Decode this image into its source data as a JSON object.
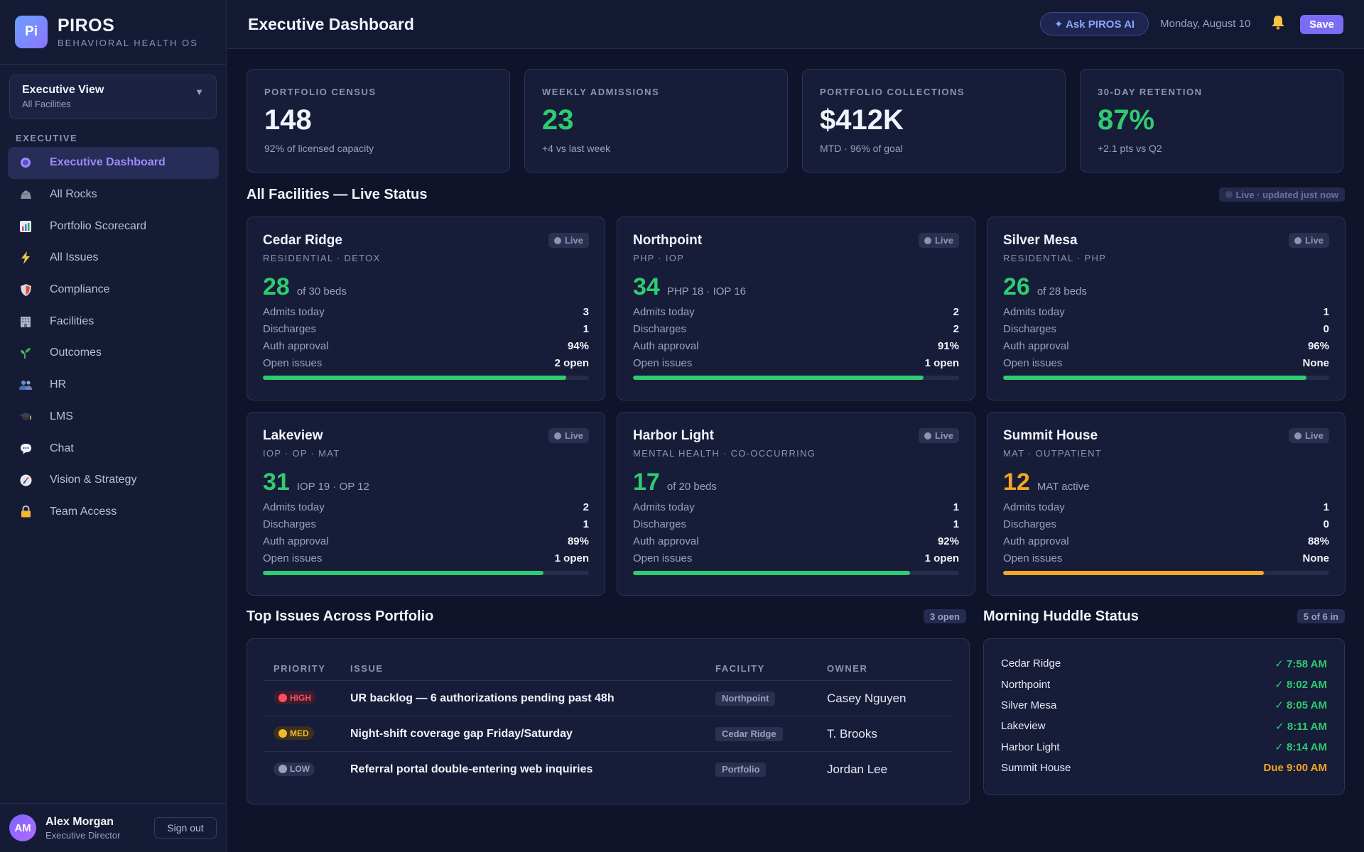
{
  "brand": {
    "logo": "Pi",
    "name": "PIROS",
    "subtitle": "BEHAVIORAL HEALTH OS"
  },
  "view_selector": {
    "title": "Executive View",
    "subtitle": "All Facilities",
    "caret": "▼"
  },
  "sidebar": {
    "section_label": "EXECUTIVE",
    "items": [
      {
        "label": "Executive Dashboard",
        "icon": "dot-icon",
        "active": true
      },
      {
        "label": "All Rocks",
        "icon": "rock-icon"
      },
      {
        "label": "Portfolio Scorecard",
        "icon": "chart-icon"
      },
      {
        "label": "All Issues",
        "icon": "lightning-icon"
      },
      {
        "label": "Compliance",
        "icon": "shield-icon"
      },
      {
        "label": "Facilities",
        "icon": "building-icon"
      },
      {
        "label": "Outcomes",
        "icon": "seedling-icon"
      },
      {
        "label": "HR",
        "icon": "people-icon"
      },
      {
        "label": "LMS",
        "icon": "graduation-cap-icon"
      },
      {
        "label": "Chat",
        "icon": "speech-bubble-icon"
      },
      {
        "label": "Vision & Strategy",
        "icon": "compass-icon"
      },
      {
        "label": "Team Access",
        "icon": "lock-icon"
      }
    ]
  },
  "user": {
    "initials": "AM",
    "name": "Alex Morgan",
    "role": "Executive Director",
    "signout_label": "Sign out"
  },
  "header": {
    "title": "Executive Dashboard",
    "ask_label": "✦ Ask PIROS AI",
    "date": "Monday, August 10",
    "save_label": "Save"
  },
  "kpis": [
    {
      "label": "PORTFOLIO CENSUS",
      "value": "148",
      "sub": "92% of licensed capacity",
      "color": "#f2f4fb"
    },
    {
      "label": "WEEKLY ADMISSIONS",
      "value": "23",
      "sub": "+4 vs last week",
      "color": "#2ecc71"
    },
    {
      "label": "PORTFOLIO COLLECTIONS",
      "value": "$412K",
      "sub": "MTD · 96% of goal",
      "color": "#f2f4fb"
    },
    {
      "label": "30-DAY RETENTION",
      "value": "87%",
      "sub": "+2.1 pts vs Q2",
      "color": "#2ecc71"
    }
  ],
  "facilities_section": {
    "title": "All Facilities — Live Status",
    "live_note": "Live · updated just now"
  },
  "row_labels": {
    "admits": "Admits today",
    "discharges": "Discharges",
    "auth": "Auth approval",
    "issues": "Open issues"
  },
  "facilities": [
    {
      "name": "Cedar Ridge",
      "type": "RESIDENTIAL · DETOX",
      "live": "Live",
      "census": "28",
      "census_sub": "of 30 beds",
      "admits": "3",
      "discharges": "1",
      "auth": "94%",
      "issues": "2 open",
      "progress": 0.93,
      "color": "#2ecc71"
    },
    {
      "name": "Northpoint",
      "type": "PHP · IOP",
      "live": "Live",
      "census": "34",
      "census_sub": "PHP 18 · IOP 16",
      "admits": "2",
      "discharges": "2",
      "auth": "91%",
      "issues": "1 open",
      "progress": 0.89,
      "color": "#2ecc71"
    },
    {
      "name": "Silver Mesa",
      "type": "RESIDENTIAL · PHP",
      "live": "Live",
      "census": "26",
      "census_sub": "of 28 beds",
      "admits": "1",
      "discharges": "0",
      "auth": "96%",
      "issues": "None",
      "progress": 0.93,
      "color": "#2ecc71"
    },
    {
      "name": "Lakeview",
      "type": "IOP · OP · MAT",
      "live": "Live",
      "census": "31",
      "census_sub": "IOP 19 · OP 12",
      "admits": "2",
      "discharges": "1",
      "auth": "89%",
      "issues": "1 open",
      "progress": 0.86,
      "color": "#2ecc71"
    },
    {
      "name": "Harbor Light",
      "type": "MENTAL HEALTH · CO-OCCURRING",
      "live": "Live",
      "census": "17",
      "census_sub": "of 20 beds",
      "admits": "1",
      "discharges": "1",
      "auth": "92%",
      "issues": "1 open",
      "progress": 0.85,
      "color": "#2ecc71"
    },
    {
      "name": "Summit House",
      "type": "MAT · OUTPATIENT",
      "live": "Live",
      "census": "12",
      "census_sub": "MAT active",
      "admits": "1",
      "discharges": "0",
      "auth": "88%",
      "issues": "None",
      "progress": 0.8,
      "color": "#f5a623"
    }
  ],
  "issues_section": {
    "title": "Top Issues Across Portfolio",
    "count": "3 open",
    "headers": [
      "PRIORITY",
      "ISSUE",
      "FACILITY",
      "OWNER"
    ],
    "rows": [
      {
        "priority": "HIGH",
        "priority_color": "#ff4d5e",
        "priority_bg": "#3a1d2e",
        "issue": "UR backlog — 6 authorizations pending past 48h",
        "facility": "Northpoint",
        "owner": "Casey Nguyen"
      },
      {
        "priority": "MED",
        "priority_color": "#f5b72e",
        "priority_bg": "#3a301d",
        "issue": "Night-shift coverage gap Friday/Saturday",
        "facility": "Cedar Ridge",
        "owner": "T. Brooks"
      },
      {
        "priority": "LOW",
        "priority_color": "#9aa1c0",
        "priority_bg": "#2a3050",
        "issue": "Referral portal double-entering web inquiries",
        "facility": "Portfolio",
        "owner": "Jordan Lee"
      }
    ]
  },
  "huddle_section": {
    "title": "Morning Huddle Status",
    "count": "5 of 6 in",
    "rows": [
      {
        "facility": "Cedar Ridge",
        "status": "✓ 7:58 AM",
        "color": "#2ecc71"
      },
      {
        "facility": "Northpoint",
        "status": "✓ 8:02 AM",
        "color": "#2ecc71"
      },
      {
        "facility": "Silver Mesa",
        "status": "✓ 8:05 AM",
        "color": "#2ecc71"
      },
      {
        "facility": "Lakeview",
        "status": "✓ 8:11 AM",
        "color": "#2ecc71"
      },
      {
        "facility": "Harbor Light",
        "status": "✓ 8:14 AM",
        "color": "#2ecc71"
      },
      {
        "facility": "Summit House",
        "status": "Due 9:00 AM",
        "color": "#f5a623"
      }
    ]
  }
}
